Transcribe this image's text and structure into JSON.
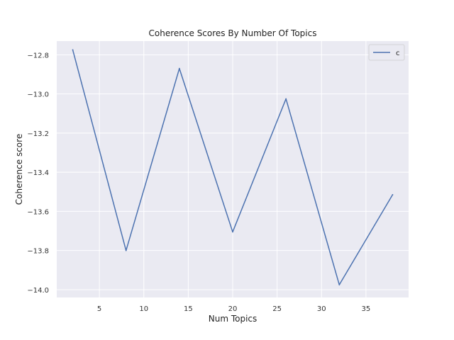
{
  "chart_data": {
    "type": "line",
    "title": "Coherence Scores By Number Of Topics",
    "xlabel": "Num Topics",
    "ylabel": "Coherence score",
    "xlim": [
      0.2,
      39.8
    ],
    "ylim": [
      -14.04,
      -12.73
    ],
    "x_ticks": [
      5,
      10,
      15,
      20,
      25,
      30,
      35
    ],
    "y_ticks": [
      -14.0,
      -13.8,
      -13.6,
      -13.4,
      -13.2,
      -13.0,
      -12.8
    ],
    "y_tick_labels": [
      "−14.0",
      "−13.8",
      "−13.6",
      "−13.4",
      "−13.2",
      "−13.0",
      "−12.8"
    ],
    "grid": true,
    "legend_position": "top-right",
    "series": [
      {
        "name": "c",
        "color": "#4c72b0",
        "x": [
          2,
          8,
          14,
          20,
          26,
          32,
          38
        ],
        "y": [
          -12.775,
          -13.8,
          -12.87,
          -13.705,
          -13.025,
          -13.975,
          -13.515
        ]
      }
    ]
  }
}
